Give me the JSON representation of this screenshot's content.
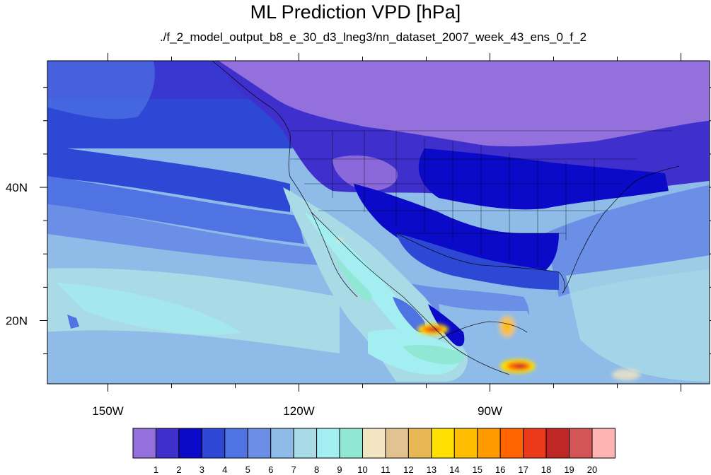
{
  "title": "ML Prediction VPD [hPa]",
  "subtitle": "./f_2_model_output_b8_e_30_d3_lneg3/nn_dataset_2007_week_43_ens_0_f_2",
  "axes": {
    "lon_ticks": [
      {
        "value": -150,
        "label": "150W"
      },
      {
        "value": -120,
        "label": "120W"
      },
      {
        "value": -90,
        "label": "90W"
      }
    ],
    "lat_ticks": [
      {
        "value": 40,
        "label": "40N"
      },
      {
        "value": 20,
        "label": "20N"
      }
    ],
    "lon_range": [
      -159.5,
      -55.5
    ],
    "lat_range": [
      10.5,
      59
    ]
  },
  "colorbar": {
    "labels": [
      "1",
      "2",
      "3",
      "4",
      "5",
      "6",
      "7",
      "8",
      "9",
      "10",
      "11",
      "12",
      "13",
      "14",
      "15",
      "16",
      "17",
      "18",
      "19",
      "20"
    ],
    "colors": [
      "#9370db",
      "#3f2fcc",
      "#0a0ac8",
      "#2e48d6",
      "#4f73e3",
      "#6b8fe6",
      "#8fbbe8",
      "#a9dbe6",
      "#a3eef0",
      "#90e8d4",
      "#f2e6c2",
      "#e2c290",
      "#e8b855",
      "#ffe000",
      "#ffbe00",
      "#ff9a00",
      "#ff6400",
      "#ea3a1a",
      "#bf2626",
      "#d45555",
      "#ffb4b4"
    ]
  }
}
